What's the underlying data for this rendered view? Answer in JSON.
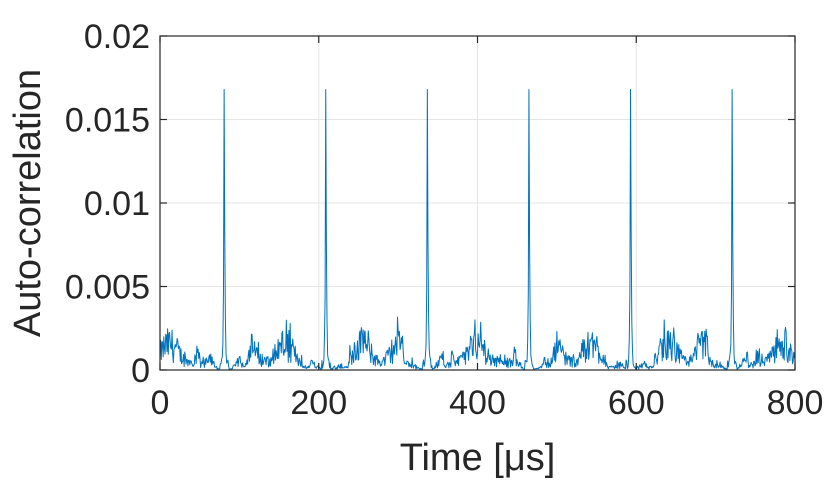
{
  "chart_data": {
    "type": "line",
    "title": "",
    "xlabel": "Time [μs]",
    "ylabel": "Auto-correlation",
    "xlim": [
      0,
      800
    ],
    "ylim": [
      0,
      0.02
    ],
    "xticks": [
      0,
      200,
      400,
      600,
      800
    ],
    "xtick_labels": [
      "0",
      "200",
      "400",
      "600",
      "800"
    ],
    "yticks": [
      0,
      0.005,
      0.01,
      0.015,
      0.02
    ],
    "ytick_labels": [
      "0",
      "0.005",
      "0.01",
      "0.015",
      "0.02"
    ],
    "grid": true,
    "line_color": "#0072BD",
    "series": [
      {
        "peaks": [
          {
            "x": 81,
            "y": 0.0168
          },
          {
            "x": 209,
            "y": 0.0168
          },
          {
            "x": 337,
            "y": 0.0168
          },
          {
            "x": 465,
            "y": 0.0168
          },
          {
            "x": 593,
            "y": 0.0168
          },
          {
            "x": 721,
            "y": 0.0168
          }
        ],
        "noise_max": 0.0033,
        "noise_typical": 0.0015
      }
    ]
  }
}
